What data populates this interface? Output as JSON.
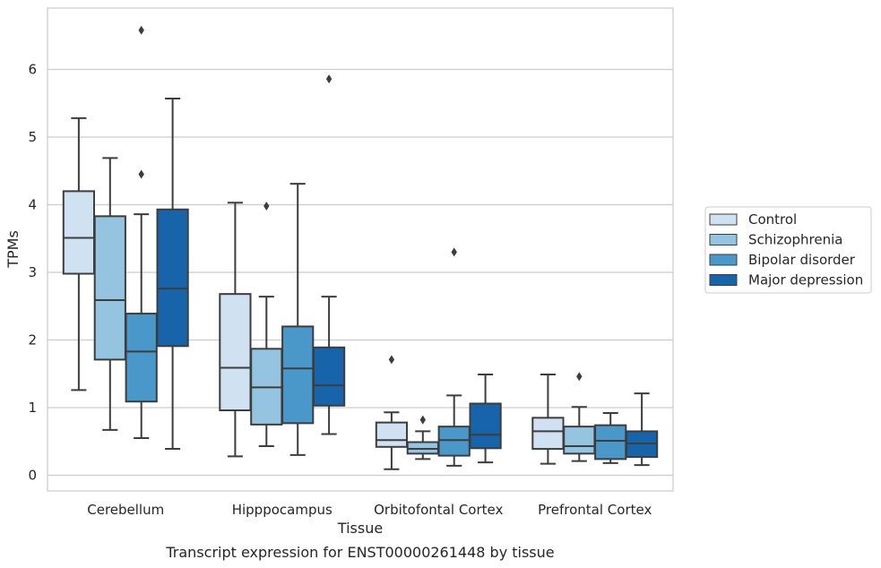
{
  "chart_data": {
    "type": "box",
    "caption": "Transcript expression for ENST00000261448 by tissue",
    "xlabel": "Tissue",
    "ylabel": "TPMs",
    "ylim": [
      -0.22,
      6.9
    ],
    "yticks": [
      0,
      1,
      2,
      3,
      4,
      5,
      6
    ],
    "grid": true,
    "legend_position": "right",
    "categories": [
      "Cerebellum",
      "Hipppocampus",
      "Orbitofontal Cortex",
      "Prefrontal Cortex"
    ],
    "series": [
      {
        "name": "Control",
        "color": "#d0e1f2",
        "boxes": [
          {
            "whisker_low": 1.26,
            "q1": 2.98,
            "median": 3.51,
            "q3": 4.2,
            "whisker_high": 5.28,
            "outliers": []
          },
          {
            "whisker_low": 0.28,
            "q1": 0.96,
            "median": 1.59,
            "q3": 2.68,
            "whisker_high": 4.03,
            "outliers": []
          },
          {
            "whisker_low": 0.09,
            "q1": 0.42,
            "median": 0.52,
            "q3": 0.78,
            "whisker_high": 0.93,
            "outliers": [
              1.71
            ]
          },
          {
            "whisker_low": 0.17,
            "q1": 0.39,
            "median": 0.65,
            "q3": 0.85,
            "whisker_high": 1.49,
            "outliers": []
          }
        ]
      },
      {
        "name": "Schizophrenia",
        "color": "#94c4df",
        "boxes": [
          {
            "whisker_low": 0.67,
            "q1": 1.71,
            "median": 2.59,
            "q3": 3.83,
            "whisker_high": 4.69,
            "outliers": []
          },
          {
            "whisker_low": 0.43,
            "q1": 0.75,
            "median": 1.3,
            "q3": 1.87,
            "whisker_high": 2.64,
            "outliers": [
              3.98
            ]
          },
          {
            "whisker_low": 0.24,
            "q1": 0.32,
            "median": 0.39,
            "q3": 0.49,
            "whisker_high": 0.65,
            "outliers": [
              0.82
            ]
          },
          {
            "whisker_low": 0.21,
            "q1": 0.32,
            "median": 0.43,
            "q3": 0.72,
            "whisker_high": 1.01,
            "outliers": [
              1.46
            ]
          }
        ]
      },
      {
        "name": "Bipolar disorder",
        "color": "#4a98c9",
        "boxes": [
          {
            "whisker_low": 0.55,
            "q1": 1.09,
            "median": 1.83,
            "q3": 2.39,
            "whisker_high": 3.86,
            "outliers": [
              4.45,
              6.58
            ]
          },
          {
            "whisker_low": 0.3,
            "q1": 0.77,
            "median": 1.58,
            "q3": 2.2,
            "whisker_high": 4.31,
            "outliers": []
          },
          {
            "whisker_low": 0.14,
            "q1": 0.29,
            "median": 0.52,
            "q3": 0.72,
            "whisker_high": 1.18,
            "outliers": [
              3.3
            ]
          },
          {
            "whisker_low": 0.18,
            "q1": 0.24,
            "median": 0.51,
            "q3": 0.74,
            "whisker_high": 0.92,
            "outliers": []
          }
        ]
      },
      {
        "name": "Major depression",
        "color": "#1764ab",
        "boxes": [
          {
            "whisker_low": 0.39,
            "q1": 1.91,
            "median": 2.76,
            "q3": 3.93,
            "whisker_high": 5.57,
            "outliers": []
          },
          {
            "whisker_low": 0.61,
            "q1": 1.03,
            "median": 1.33,
            "q3": 1.89,
            "whisker_high": 2.64,
            "outliers": [
              5.86
            ]
          },
          {
            "whisker_low": 0.19,
            "q1": 0.4,
            "median": 0.6,
            "q3": 1.06,
            "whisker_high": 1.49,
            "outliers": []
          },
          {
            "whisker_low": 0.15,
            "q1": 0.27,
            "median": 0.47,
            "q3": 0.65,
            "whisker_high": 1.21,
            "outliers": []
          }
        ]
      }
    ]
  }
}
